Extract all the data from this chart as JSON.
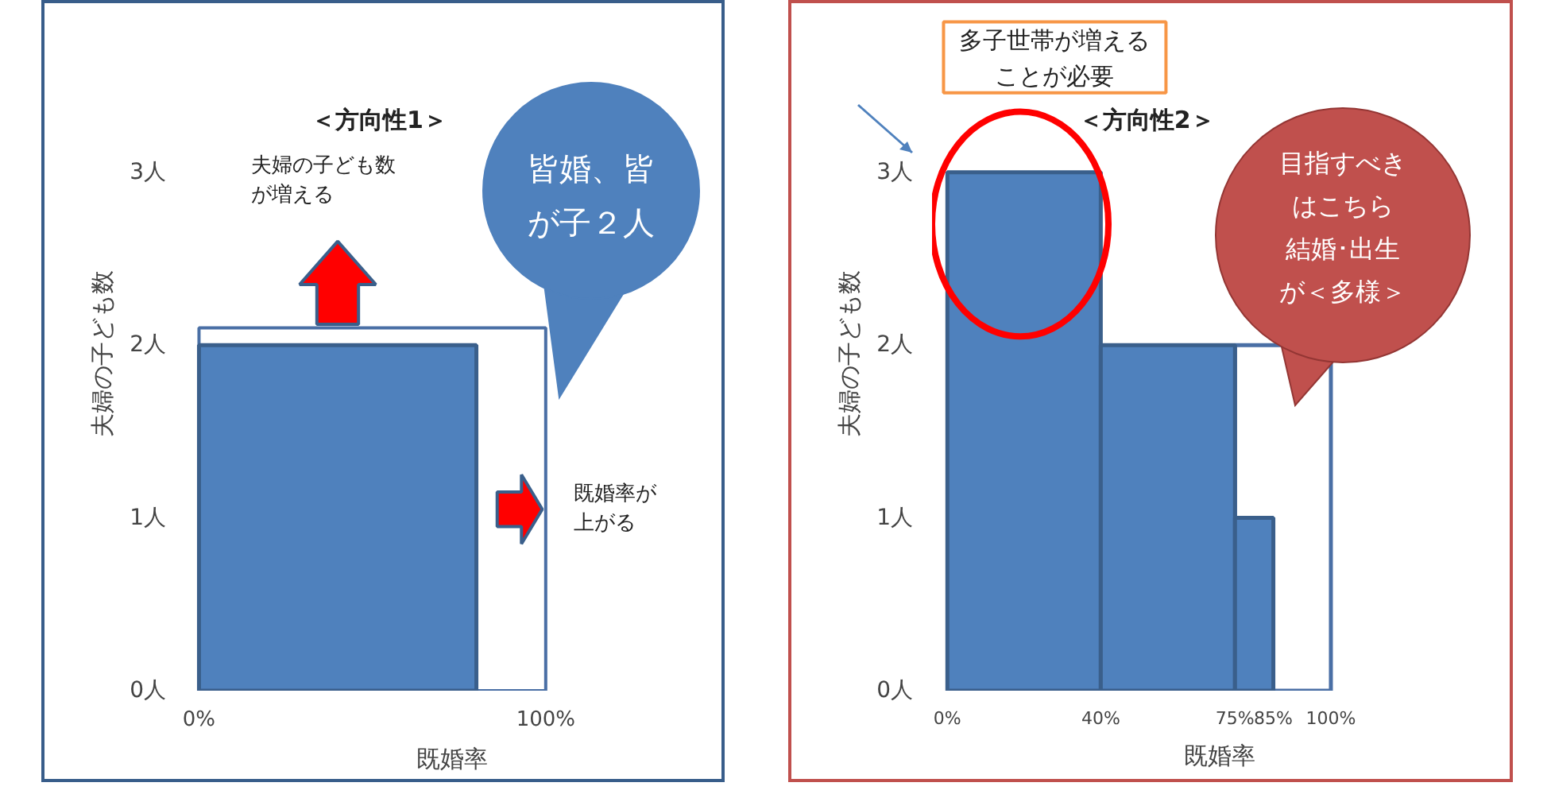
{
  "chart_data": [
    {
      "type": "histogram",
      "title": "＜方向性1＞",
      "xlabel": "既婚率",
      "ylabel": "夫婦の子ども数",
      "bins": [
        0,
        80
      ],
      "values": [
        2
      ],
      "color": "#4f81bd",
      "xlim": [
        0,
        100
      ],
      "ylim": [
        0,
        3
      ],
      "xticks": [
        {
          "value": 0,
          "label": "0%"
        },
        {
          "value": 100,
          "label": "100%"
        }
      ],
      "yticks": [
        {
          "value": 0,
          "label": "0人"
        },
        {
          "value": 1,
          "label": "1人"
        },
        {
          "value": 2,
          "label": "2人"
        },
        {
          "value": 3,
          "label": "3人"
        }
      ],
      "grid": false,
      "annotations": [
        "夫婦の子ども数が増える",
        "既婚率が上がる",
        "皆婚、皆が子２人"
      ]
    },
    {
      "type": "histogram",
      "title": "＜方向性2＞",
      "xlabel": "既婚率",
      "ylabel": "夫婦の子ども数",
      "bins": [
        0,
        40,
        75,
        85
      ],
      "values": [
        3,
        2,
        1
      ],
      "color": "#4f81bd",
      "xlim": [
        0,
        100
      ],
      "ylim": [
        0,
        3
      ],
      "xticks": [
        {
          "value": 0,
          "label": "0%"
        },
        {
          "value": 40,
          "label": "40%"
        },
        {
          "value": 75,
          "label": "75%"
        },
        {
          "value": 85,
          "label": "85%"
        },
        {
          "value": 100,
          "label": "100%"
        }
      ],
      "yticks": [
        {
          "value": 0,
          "label": "0人"
        },
        {
          "value": 1,
          "label": "1人"
        },
        {
          "value": 2,
          "label": "2人"
        },
        {
          "value": 3,
          "label": "3人"
        }
      ],
      "grid": false,
      "annotations": [
        "多子世帯が増えることが必要",
        "目指すべきはこちら結婚･出生が＜多様＞"
      ]
    }
  ]
}
